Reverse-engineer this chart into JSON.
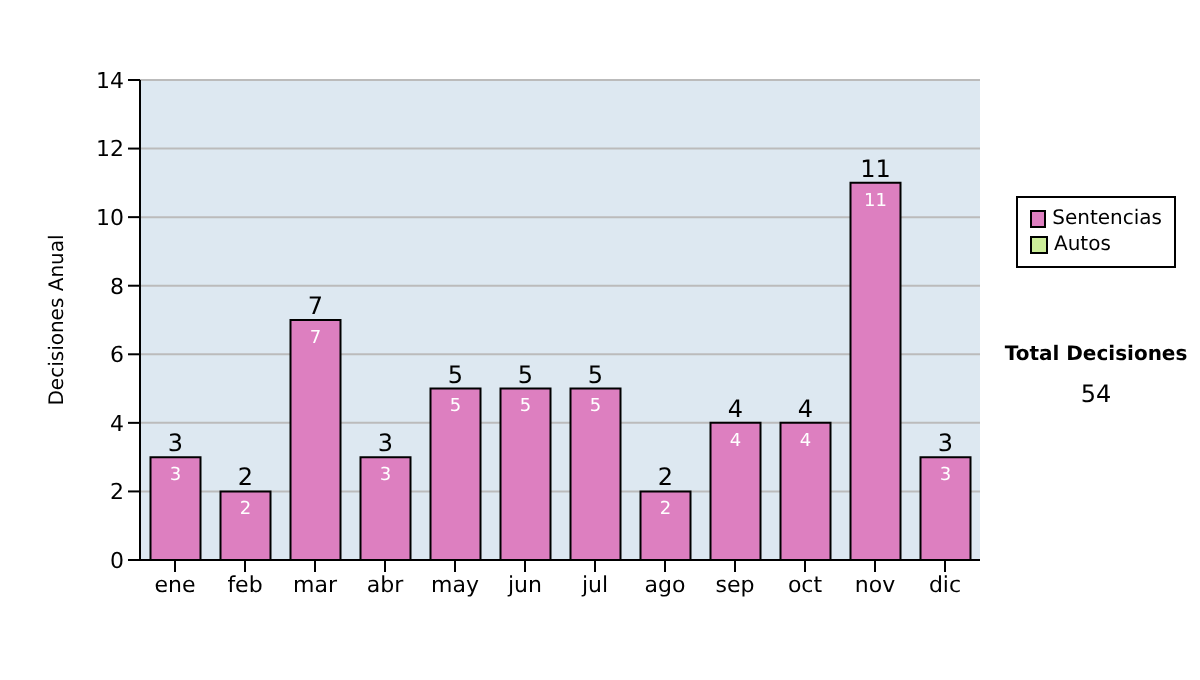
{
  "chart_data": {
    "type": "bar",
    "stacked": true,
    "ylabel": "Decisiones Anual",
    "categories": [
      "ene",
      "feb",
      "mar",
      "abr",
      "may",
      "jun",
      "jul",
      "ago",
      "sep",
      "oct",
      "nov",
      "dic"
    ],
    "series": [
      {
        "name": "Sentencias",
        "color": "#dd7fc0",
        "values": [
          3,
          2,
          7,
          3,
          5,
          5,
          5,
          2,
          4,
          4,
          11,
          3
        ],
        "value_labels": [
          "3",
          "2",
          "7",
          "3",
          "5",
          "5",
          "5",
          "2",
          "4",
          "4",
          "11",
          "3"
        ]
      },
      {
        "name": "Autos",
        "color": "#ccee99",
        "values": [
          0,
          0,
          0,
          0,
          0,
          0,
          0,
          0,
          0,
          0,
          0,
          0
        ]
      }
    ],
    "totals": [
      "3",
      "2",
      "7",
      "3",
      "5",
      "5",
      "5",
      "2",
      "4",
      "4",
      "11",
      "3"
    ],
    "ylim": [
      0,
      14
    ],
    "yticks": [
      0,
      2,
      4,
      6,
      8,
      10,
      12,
      14
    ],
    "grid": "y",
    "legend": "right",
    "annotations": [
      "Total Decisiones",
      "54"
    ]
  }
}
